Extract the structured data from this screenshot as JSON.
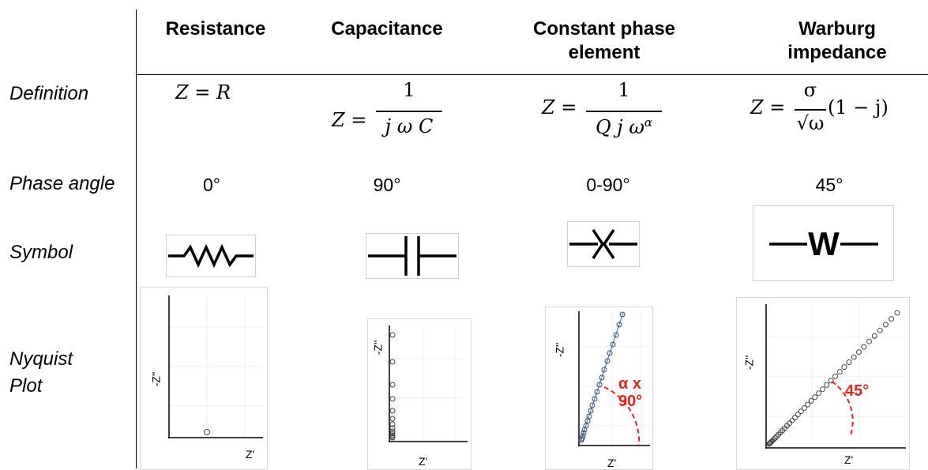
{
  "headers": {
    "resistance": "Resistance",
    "capacitance": "Capacitance",
    "cpe_line1": "Constant phase",
    "cpe_line2": "element",
    "warburg_line1": "Warburg",
    "warburg_line2": "impedance"
  },
  "rows": {
    "definition": "Definition",
    "phase_angle": "Phase angle",
    "symbol": "Symbol",
    "nyquist_line1": "Nyquist",
    "nyquist_line2": "Plot"
  },
  "definitions": {
    "resistance": "Z = R",
    "capacitance_lhs": "Z =",
    "capacitance_num": "1",
    "capacitance_den": "j ω C",
    "cpe_lhs": "Z =",
    "cpe_num": "1",
    "cpe_den": "Q j ω",
    "cpe_exp": "α",
    "warburg_lhs": "Z =",
    "warburg_num": "σ",
    "warburg_den": "√ω",
    "warburg_rhs": "(1 − j)"
  },
  "phase_angles": {
    "resistance": "0°",
    "capacitance": "90°",
    "cpe": "0-90°",
    "warburg": "45°"
  },
  "symbols": {
    "resistance": "resistor-zigzag-icon",
    "capacitance": "capacitor-icon",
    "cpe": "cpe-icon",
    "warburg_letter": "W"
  },
  "plots": {
    "resistance": {
      "xlabel": "Z'",
      "ylabel": "-Z''"
    },
    "capacitance": {
      "xlabel": "Z'",
      "ylabel": "-Z''"
    },
    "cpe": {
      "xlabel": "Z'",
      "ylabel": "-Z''",
      "annotation": "α x 90°"
    },
    "warburg": {
      "xlabel": "Z'",
      "ylabel": "-Z''",
      "annotation": "45°"
    }
  },
  "colors": {
    "annotation": "#e8231b",
    "cpe_line": "#4f7fd0",
    "grid": "#e6e6e6"
  }
}
